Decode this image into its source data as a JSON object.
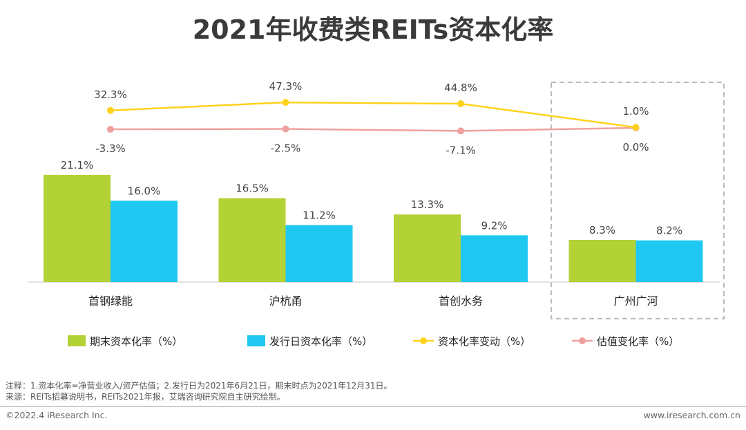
{
  "chart_data": {
    "type": "bar",
    "title": "2021年收费类REITs资本化率",
    "categories": [
      "首钢绿能",
      "沪杭甬",
      "首创水务",
      "广州广河"
    ],
    "series": [
      {
        "name": "期末资本化率（%）",
        "kind": "bar",
        "color": "#b2d235",
        "values": [
          21.1,
          16.5,
          13.3,
          8.3
        ],
        "labels": [
          "21.1%",
          "16.5%",
          "13.3%",
          "8.3%"
        ]
      },
      {
        "name": "发行日资本化率（%）",
        "kind": "bar",
        "color": "#1ec8f0",
        "values": [
          16.0,
          11.2,
          9.2,
          8.2
        ],
        "labels": [
          "16.0%",
          "11.2%",
          "9.2%",
          "8.2%"
        ]
      },
      {
        "name": "资本化率变动（%）",
        "kind": "line",
        "color": "#ffd21c",
        "values": [
          32.3,
          47.3,
          44.8,
          1.0
        ],
        "labels": [
          "32.3%",
          "47.3%",
          "44.8%",
          "1.0%"
        ]
      },
      {
        "name": "估值变化率（%）",
        "kind": "line",
        "color": "#f0a0a0",
        "values": [
          -3.3,
          -2.5,
          -7.1,
          0.0
        ],
        "labels": [
          "-3.3%",
          "-2.5%",
          "-7.1%",
          "0.0%"
        ]
      }
    ],
    "highlight_category": "广州广河",
    "legend_position": "bottom"
  },
  "notes": {
    "line1": "注释：1.资本化率=净营业收入/资产估值；2.发行日为2021年6月21日，期末时点为2021年12月31日。",
    "line2": "来源：REITs招募说明书，REITs2021年报，艾瑞咨询研究院自主研究绘制。"
  },
  "footer": {
    "left": "©2022.4 iResearch Inc.",
    "right": "www.iresearch.com.cn"
  }
}
